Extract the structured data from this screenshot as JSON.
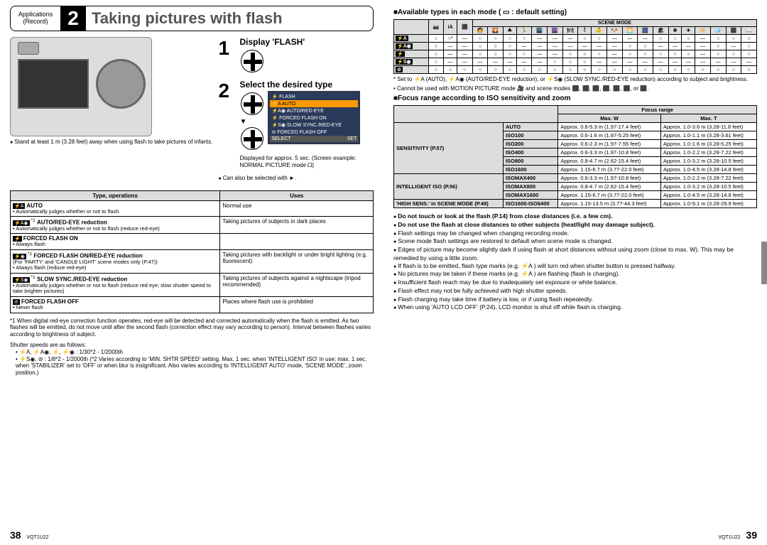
{
  "header": {
    "section": "Applications",
    "subsection": "(Record)",
    "chapter_num": "2",
    "title": "Taking pictures with flash"
  },
  "camera_note": "Stand at least 1 m (3.28 feet) away when using flash to take pictures of infants.",
  "steps": [
    {
      "num": "1",
      "title": "Display 'FLASH'"
    },
    {
      "num": "2",
      "title": "Select the desired type"
    }
  ],
  "flash_menu": {
    "header": "FLASH",
    "items": [
      "AUTO",
      "AUTO/RED-EYE",
      "FORCED FLASH ON",
      "SLOW SYNC./RED-EYE",
      "FORCED FLASH OFF"
    ],
    "footer_left": "SELECT",
    "footer_right": "SET"
  },
  "menu_caption": "Displayed for approx. 5 sec. (Screen example: NORMAL PICTURE mode 🞐)",
  "also_note": "Can also be selected with ►.",
  "t1": {
    "headers": [
      "Type, operations",
      "Uses"
    ],
    "rows": [
      {
        "icon": "⚡A",
        "star": "",
        "name": "AUTO",
        "sub": "• Automatically judges whether or not to flash",
        "use": "Normal use"
      },
      {
        "icon": "⚡A◉",
        "star": "*1",
        "name": "AUTO/RED-EYE reduction",
        "sub": "• Automatically judges whether or not to flash (reduce red-eye)",
        "use": "Taking pictures of subjects in dark places"
      },
      {
        "icon": "⚡",
        "star": "",
        "name": "FORCED FLASH ON",
        "sub": "• Always flash",
        "use": ""
      },
      {
        "icon": "⚡◉",
        "star": "*1",
        "name": "FORCED FLASH ON/RED-EYE reduction",
        "sub": "(For 'PARTY' and 'CANDLE LIGHT' scene modes only (P.47))\n• Always flash (reduce red-eye)",
        "use": "Taking pictures with backlight or under bright lighting (e.g. fluorescent)"
      },
      {
        "icon": "⚡S◉",
        "star": "*1",
        "name": "SLOW SYNC./RED-EYE reduction",
        "sub": "• Automatically judges whether or not to flash (reduce red eye; slow shutter speed to take brighter pictures)",
        "use": "Taking pictures of subjects against a nightscape (tripod recommended)"
      },
      {
        "icon": "⊘",
        "star": "",
        "name": "FORCED FLASH OFF",
        "sub": "• Never flash",
        "use": "Places where flash use is prohibited"
      }
    ]
  },
  "footnote1": "*1 When digital red-eye correction function operates, red-eye will be detected and corrected automatically when the flash is emitted. As two flashes will be emitted, do not move until after the second flash (correction effect may vary according to person). Interval between flashes varies according to brightness of subject.",
  "shutter_note": "Shutter speeds are as follows:",
  "shutter_items": [
    "⚡A, ⚡A◉, ⚡, ⚡◉ : 1/30*2 - 1/2000th",
    "⚡S◉, ⊘ : 1/8*2 - 1/2000th (*2 Varies according to 'MIN. SHTR SPEED' setting. Max. 1 sec. when 'INTELLIGENT ISO' in use; max. 1 sec. when 'STABILIZER' set to 'OFF' or when blur is insignificant. Also varies according to 'INTELLIGENT AUTO' mode, 'SCENE MODE', zoom position.)"
  ],
  "page_left": {
    "num": "38",
    "code": "VQT1U22"
  },
  "page_right": {
    "num": "39",
    "code": "VQT1U22"
  },
  "avail_title": "Available types in each mode ( ▭ : default setting)",
  "t2": {
    "top_cols": [
      "📷",
      "iA",
      "⬛",
      "SCENE MODE"
    ],
    "scene_sub": [
      "🧑",
      "🌄",
      "⛰",
      "🏃",
      "🌃",
      "🌆",
      "🍽",
      "🕯",
      "👶",
      "🐶",
      "🌅",
      "🎆",
      "🏖",
      "❄",
      "✈",
      "🔆",
      "🧊",
      "⬛",
      "📖"
    ],
    "rows": [
      {
        "h": "⚡A",
        "cells": [
          "○",
          "○*",
          "—",
          "○",
          "○",
          "○",
          "○",
          "—",
          "—",
          "—",
          "○",
          "○",
          "—",
          "—",
          "—",
          "○",
          "○",
          "○",
          "—",
          "○",
          "○",
          "○"
        ]
      },
      {
        "h": "⚡A◉",
        "cells": [
          "○",
          "—",
          "—",
          "○",
          "○",
          "○",
          "—",
          "—",
          "—",
          "—",
          "—",
          "—",
          "—",
          "○",
          "○",
          "—",
          "—",
          "—",
          "—",
          "○",
          "—",
          "○"
        ]
      },
      {
        "h": "⚡",
        "cells": [
          "○",
          "—",
          "—",
          "○",
          "○",
          "○",
          "○",
          "—",
          "—",
          "○",
          "○",
          "○",
          "—",
          "○",
          "○",
          "○",
          "○",
          "○",
          "—",
          "○",
          "○",
          "○"
        ]
      },
      {
        "h": "⚡S◉",
        "cells": [
          "○",
          "—",
          "—",
          "—",
          "—",
          "—",
          "—",
          "—",
          "○",
          "○",
          "○",
          "—",
          "—",
          "—",
          "—",
          "—",
          "—",
          "—",
          "—",
          "—",
          "—",
          "—"
        ]
      },
      {
        "h": "⊘",
        "cells": [
          "○",
          "○",
          "○",
          "○",
          "○",
          "○",
          "○",
          "○",
          "○",
          "○",
          "○",
          "○",
          "○",
          "○",
          "○",
          "○",
          "○",
          "○",
          "○",
          "○",
          "○",
          "○"
        ]
      }
    ]
  },
  "t2_notes": [
    "* Set to ⚡A (AUTO), ⚡A◉ (AUTO/RED-EYE reduction), or ⚡S◉ (SLOW SYNC./RED-EYE reduction) according to subject and brightness.",
    "• Cannot be used with MOTION PICTURE mode 🎥 and scene modes ⬛, ⬛, ⬛, ⬛, ⬛, ⬛, or ⬛."
  ],
  "focus_title": "Focus range according to ISO sensitivity and zoom",
  "t3": {
    "head": [
      "",
      "",
      "Focus range"
    ],
    "sub": [
      "",
      "",
      "Max. W",
      "Max. T"
    ],
    "groups": [
      {
        "name": "SENSITIVITY (P.57)",
        "rows": [
          {
            "k": "AUTO",
            "w": "Approx. 0.6-5.3 m (1.97-17.4 feet)",
            "t": "Approx. 1.0-3.6 m (3.28-11.8 feet)"
          },
          {
            "k": "ISO100",
            "w": "Approx. 0.6-1.6 m (1.97-5.25 feet)",
            "t": "Approx. 1.0-1.1 m (3.28-3.61 feet)"
          },
          {
            "k": "ISO200",
            "w": "Approx. 0.6-2.3 m (1.97-7.55 feet)",
            "t": "Approx. 1.0-1.6 m (3.28-5.25 feet)"
          },
          {
            "k": "ISO400",
            "w": "Approx. 0.6-3.3 m (1.97-10.8 feet)",
            "t": "Approx. 1.0-2.2 m (3.28-7.22 feet)"
          },
          {
            "k": "ISO800",
            "w": "Approx. 0.8-4.7 m (2.62-15.4 feet)",
            "t": "Approx. 1.0-3.2 m (3.28-10.5 feet)"
          },
          {
            "k": "ISO1600",
            "w": "Approx. 1.15-6.7 m (3.77-22.0 feet)",
            "t": "Approx. 1.0-4.5 m (3.28-14.8 feet)"
          }
        ]
      },
      {
        "name": "INTELLIGENT ISO (P.56)",
        "rows": [
          {
            "k": "ISOMAX400",
            "w": "Approx. 0.6-3.3 m (1.97-10.8 feet)",
            "t": "Approx. 1.0-2.2 m (3.28-7.22 feet)"
          },
          {
            "k": "ISOMAX800",
            "w": "Approx. 0.8-4.7 m (2.62-15.4 feet)",
            "t": "Approx. 1.0-3.2 m (3.28-10.5 feet)"
          },
          {
            "k": "ISOMAX1600",
            "w": "Approx. 1.15-6.7 m (3.77-22.0 feet)",
            "t": "Approx. 1.0-4.5 m (3.28-14.8 feet)"
          }
        ]
      },
      {
        "name": "'HIGH SENS.' in SCENE MODE (P.49)",
        "rows": [
          {
            "k": "ISO1600-ISO6400",
            "w": "Approx. 1.15-13.5 m (3.77-44.3 feet)",
            "t": "Approx. 1.0-9.1 m (3.28-29.9 feet)"
          }
        ]
      }
    ]
  },
  "bullets": [
    "Do not touch or look at the flash (P.14) from close distances (i.e. a few cm).",
    "Do not use the flash at close distances to other subjects (heat/light may damage subject).",
    "Flash settings may be changed when changing recording mode.",
    "Scene mode flash settings are restored to default when scene mode is changed.",
    "Edges of picture may become slightly dark if using flash at short distances without using zoom (close to max. W). This may be remedied by using a little zoom.",
    "If flash is to be emitted, flash type marks (e.g. ⚡A ) will turn red when shutter button is pressed halfway.",
    "No pictures may be taken if these marks (e.g. ⚡A ) are flashing (flash is charging).",
    "Insufficient flash reach may be due to inadequately set exposure or white balance.",
    "Flash effect may not be fully achieved with high shutter speeds.",
    "Flash charging may take time if battery is low, or if using flash repeatedly.",
    "When using 'AUTO LCD OFF' (P.24), LCD monitor is shut off while flash is charging."
  ]
}
